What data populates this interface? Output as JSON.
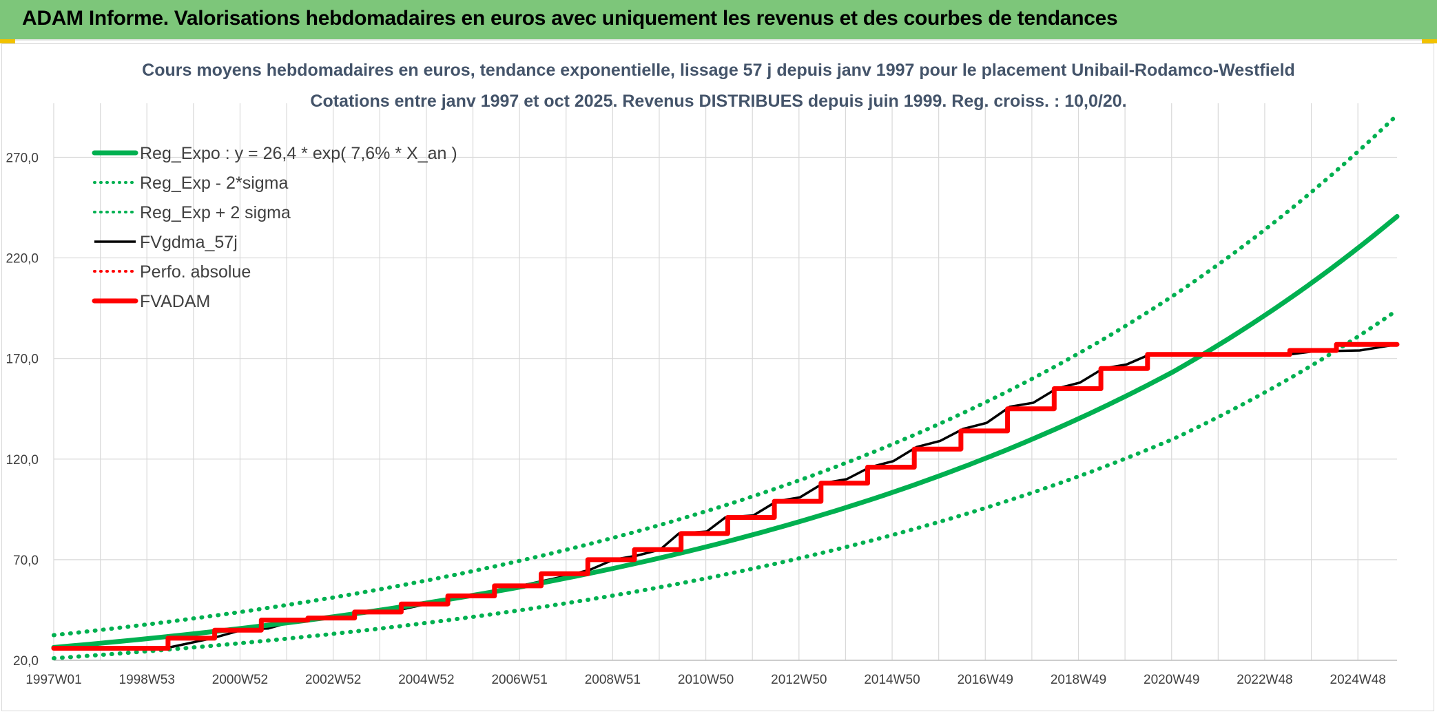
{
  "banner": {
    "title": "ADAM Informe. Valorisations hebdomadaires en euros avec uniquement les revenus et des courbes de tendances"
  },
  "colors": {
    "banner_bg": "#7dc67a",
    "reg_expo": "#00b050",
    "sigma_lines": "#00b050",
    "fvgdma": "#000000",
    "perfo": "#ff0000",
    "fvadam": "#ff0000",
    "gridlines": "#d9d9d9"
  },
  "chart_data": {
    "type": "line",
    "title": "Cours moyens hebdomadaires en euros, tendance exponentielle, lissage 57 j depuis janv 1997 pour le placement Unibail-Rodamco-Westfield",
    "subtitle": "Cotations entre janv 1997 et oct 2025. Revenus DISTRIBUES depuis juin 1999. Reg. croiss. : 10,0/20.",
    "xlabel": "",
    "ylabel": "",
    "x_tick_labels": [
      "1997W01",
      "1998W53",
      "2000W52",
      "2002W52",
      "2004W52",
      "2006W51",
      "2008W51",
      "2010W50",
      "2012W50",
      "2014W50",
      "2016W49",
      "2018W49",
      "2020W49",
      "2022W48",
      "2024W48"
    ],
    "y_tick_labels": [
      "20,0",
      "70,0",
      "120,0",
      "170,0",
      "220,0",
      "270,0"
    ],
    "ylim": [
      20,
      290
    ],
    "xlim": [
      1997.0,
      2025.8
    ],
    "grid": true,
    "legend_position": "top-left",
    "series": [
      {
        "name": "Reg_Expo : y = 26,4 * exp( 7,6% *  X_an )",
        "style": "solid-thick",
        "color": "#00b050",
        "x": [
          1997,
          2001,
          2005,
          2009,
          2013,
          2017,
          2021,
          2025.8
        ],
        "y": [
          26.4,
          35.8,
          48.5,
          65.7,
          89.0,
          120.6,
          163.4,
          240.6
        ]
      },
      {
        "name": "Reg_Exp - 2*sigma",
        "style": "dotted",
        "color": "#00b050",
        "x": [
          1997,
          2001,
          2005,
          2009,
          2013,
          2017,
          2021,
          2025.8
        ],
        "y": [
          21.0,
          28.5,
          38.6,
          52.2,
          70.8,
          95.9,
          130.0,
          194.0
        ]
      },
      {
        "name": "Reg_Exp + 2 sigma",
        "style": "dotted",
        "color": "#00b050",
        "x": [
          1997,
          2001,
          2005,
          2009,
          2013,
          2017,
          2021,
          2025.8
        ],
        "y": [
          32.5,
          44.0,
          59.7,
          80.9,
          109.6,
          148.5,
          201.2,
          291.0
        ]
      },
      {
        "name": "FVgdma_57j",
        "style": "solid",
        "color": "#000000",
        "x": [
          1997,
          1999.5,
          2000.4,
          2001.1,
          2001.6,
          2002.2,
          2003.2,
          2003.7,
          2004.3,
          2005.0,
          2006.0,
          2007.0,
          2008.0,
          2008.5,
          2009.0,
          2009.5,
          2010.0,
          2010.4,
          2011.0,
          2011.4,
          2012.0,
          2012.5,
          2013.0,
          2013.5,
          2014.0,
          2014.5,
          2015.0,
          2015.5,
          2016.0,
          2016.5,
          2017.0,
          2017.5,
          2018.0,
          2018.5,
          2019.0,
          2019.5,
          2020.0,
          2020.5,
          2021.0,
          2022.0,
          2023.0,
          2023.5,
          2024.0,
          2025.0,
          2025.8
        ],
        "y": [
          26.0,
          26.5,
          31.0,
          35.5,
          35.8,
          39.8,
          41.0,
          44.0,
          44.5,
          48.0,
          52.0,
          57.0,
          62.0,
          65.0,
          70.0,
          72.0,
          75.0,
          83.0,
          84.0,
          91.0,
          92.0,
          99.0,
          101.0,
          108.0,
          110.0,
          116.0,
          119.0,
          126.0,
          129.0,
          135.0,
          138.0,
          146.0,
          148.0,
          155.0,
          158.0,
          165.0,
          167.0,
          172.0,
          172.0,
          172.0,
          172.0,
          172.0,
          173.5,
          174.0,
          177.0
        ]
      },
      {
        "name": "Perfo. absolue",
        "style": "dotted",
        "color": "#ff0000",
        "x": [],
        "y": []
      },
      {
        "name": "FVADAM",
        "style": "solid-thick",
        "color": "#ff0000",
        "x": [
          1997,
          1999.45,
          1999.45,
          2000.45,
          2000.45,
          2001.45,
          2001.45,
          2002.45,
          2002.45,
          2003.45,
          2003.45,
          2004.45,
          2004.45,
          2005.45,
          2005.45,
          2006.45,
          2006.45,
          2007.45,
          2007.45,
          2008.45,
          2008.45,
          2009.45,
          2009.45,
          2010.45,
          2010.45,
          2011.45,
          2011.45,
          2012.45,
          2012.45,
          2013.45,
          2013.45,
          2014.45,
          2014.45,
          2015.45,
          2015.45,
          2016.45,
          2016.45,
          2017.45,
          2017.45,
          2018.45,
          2018.45,
          2019.45,
          2019.45,
          2020.45,
          2020.45,
          2023.5,
          2023.5,
          2024.5,
          2024.5,
          2025.8
        ],
        "y": [
          26.0,
          26.0,
          31.0,
          31.0,
          35.0,
          35.0,
          40.0,
          40.0,
          41.0,
          41.0,
          44.0,
          44.0,
          48.0,
          48.0,
          52.0,
          52.0,
          57.0,
          57.0,
          63.0,
          63.0,
          70.0,
          70.0,
          75.0,
          75.0,
          83.0,
          83.0,
          91.0,
          91.0,
          99.0,
          99.0,
          108.0,
          108.0,
          116.0,
          116.0,
          125.0,
          125.0,
          134.0,
          134.0,
          145.0,
          145.0,
          155.0,
          155.0,
          165.0,
          165.0,
          172.0,
          172.0,
          174.0,
          174.0,
          177.0,
          177.0
        ]
      }
    ]
  }
}
